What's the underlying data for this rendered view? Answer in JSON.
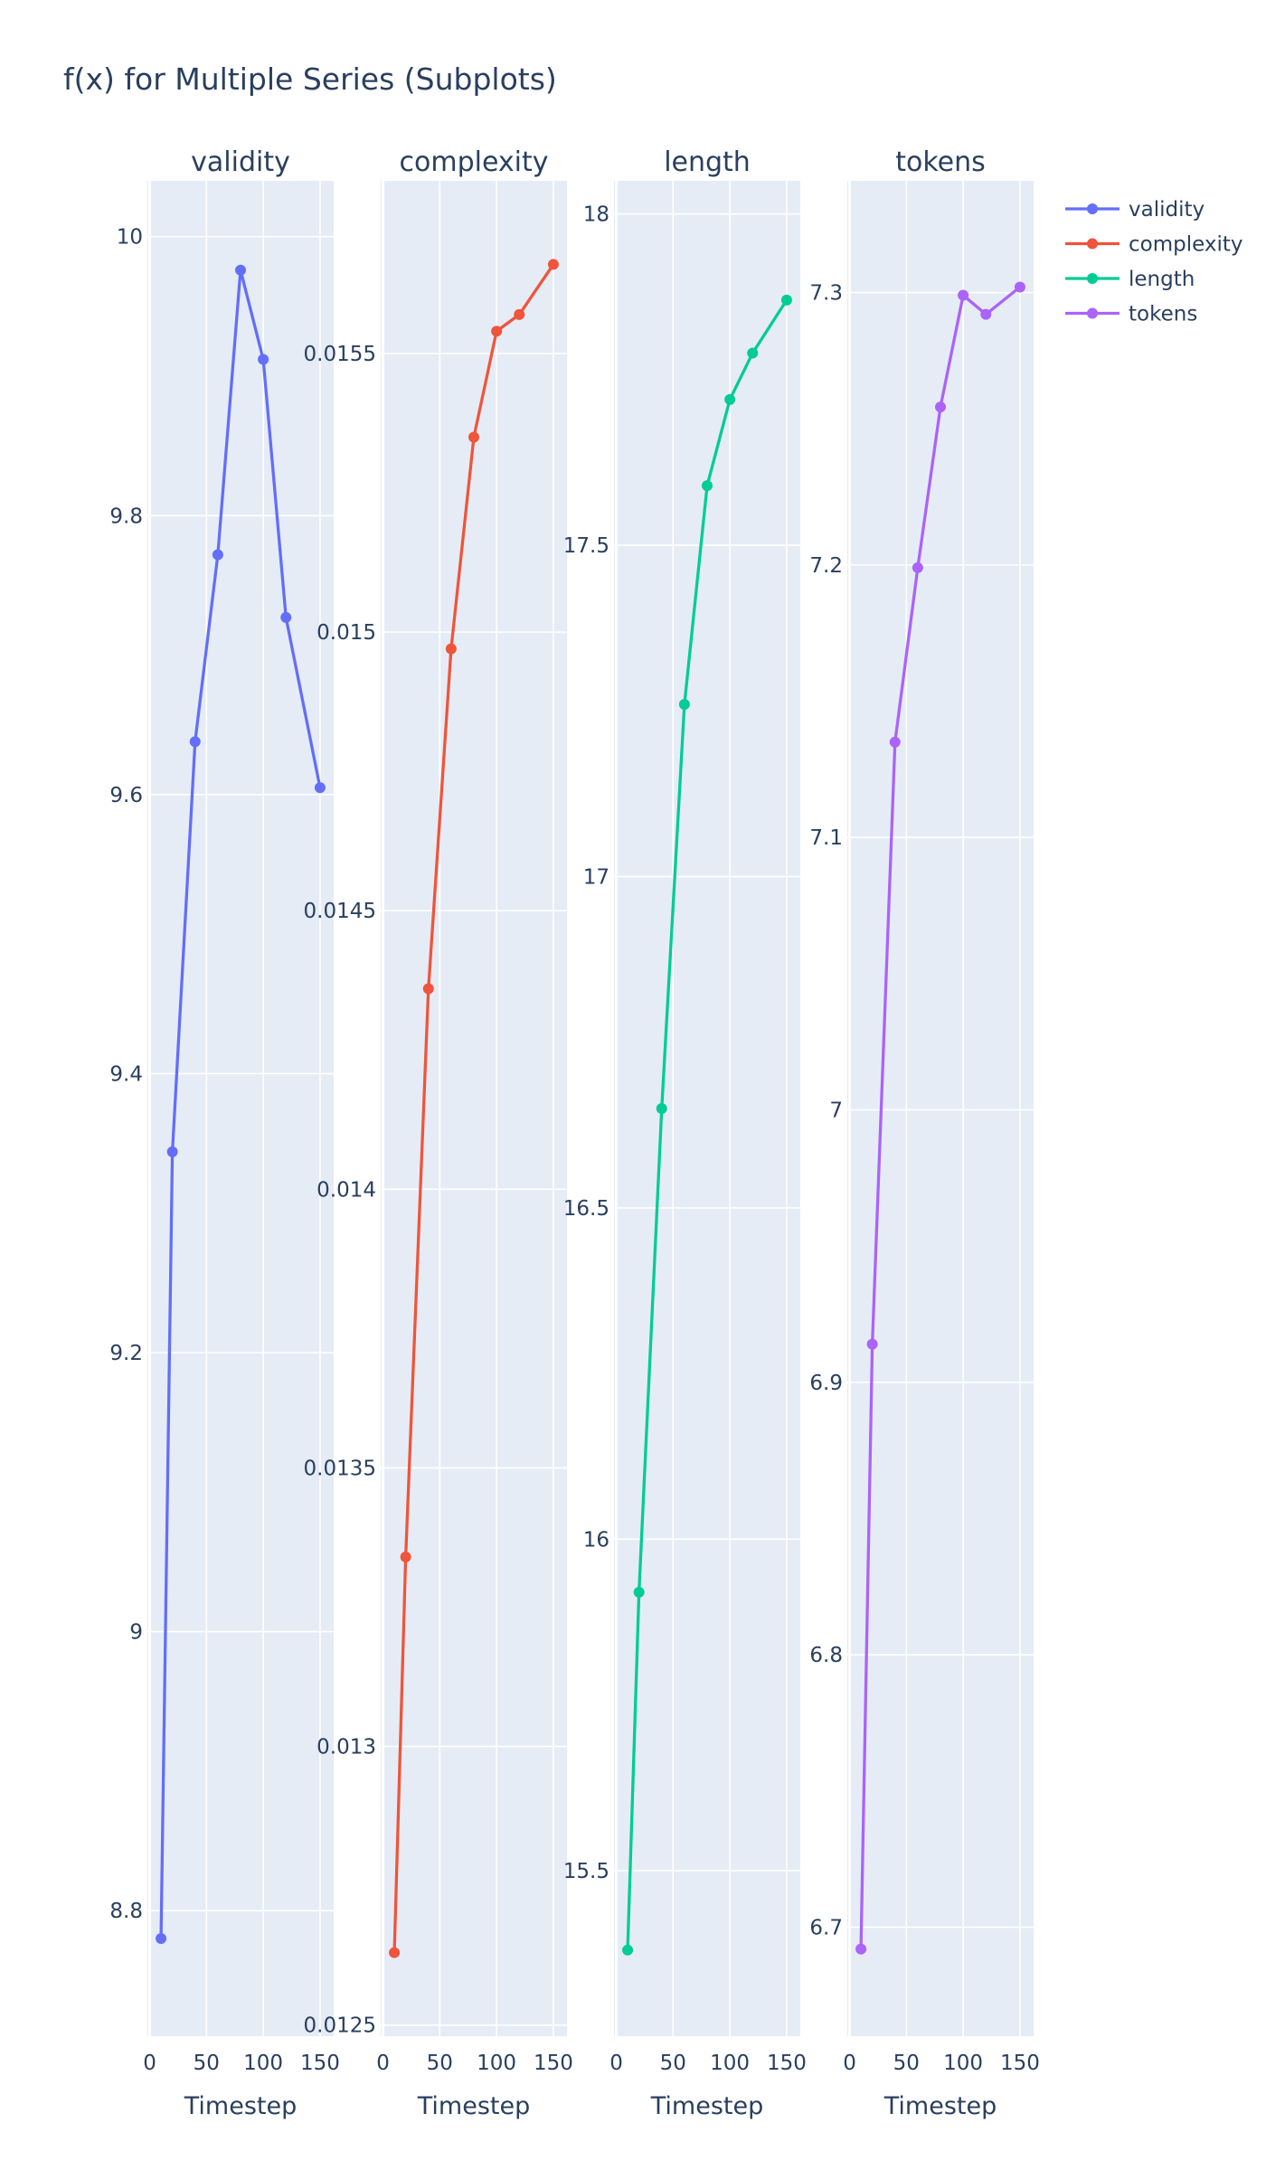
{
  "title": "f(x) for Multiple Series (Subplots)",
  "chart_data": {
    "type": "line",
    "title": "f(x) for Multiple Series (Subplots)",
    "legend_position": "top-right",
    "grid": true,
    "x": [
      10,
      20,
      40,
      60,
      80,
      100,
      120,
      150
    ],
    "xlabel": "Timestep",
    "xlim": [
      -2,
      162
    ],
    "xticks": [
      0,
      50,
      100,
      150
    ],
    "series": [
      {
        "name": "validity",
        "color": "#636efa",
        "values": [
          8.78,
          9.344,
          9.638,
          9.772,
          9.976,
          9.912,
          9.727,
          9.605
        ],
        "ylim": [
          8.71,
          10.04
        ],
        "yticks": [
          8.8,
          9,
          9.2,
          9.4,
          9.6,
          9.8,
          10
        ],
        "ytick_labels": [
          "8.8",
          "9",
          "9.2",
          "9.4",
          "9.6",
          "9.8",
          "10"
        ]
      },
      {
        "name": "complexity",
        "color": "#ef553b",
        "values": [
          0.01263,
          0.01334,
          0.01436,
          0.01497,
          0.01535,
          0.01554,
          0.01557,
          0.01566
        ],
        "ylim": [
          0.01248,
          0.01581
        ],
        "yticks": [
          0.0125,
          0.013,
          0.0135,
          0.014,
          0.0145,
          0.015,
          0.0155
        ],
        "ytick_labels": [
          "0.0125",
          "0.013",
          "0.0135",
          "0.014",
          "0.0145",
          "0.015",
          "0.0155"
        ]
      },
      {
        "name": "length",
        "color": "#00cc96",
        "values": [
          15.38,
          15.92,
          16.65,
          17.26,
          17.59,
          17.72,
          17.79,
          17.87
        ],
        "ylim": [
          15.25,
          18.05
        ],
        "yticks": [
          15.5,
          16,
          16.5,
          17,
          17.5,
          18
        ],
        "ytick_labels": [
          "15.5",
          "16",
          "16.5",
          "17",
          "17.5",
          "18"
        ]
      },
      {
        "name": "tokens",
        "color": "#ab63fa",
        "values": [
          6.692,
          6.914,
          7.135,
          7.199,
          7.258,
          7.299,
          7.292,
          7.302
        ],
        "ylim": [
          6.66,
          7.341
        ],
        "yticks": [
          6.7,
          6.8,
          6.9,
          7,
          7.1,
          7.2,
          7.3
        ],
        "ytick_labels": [
          "6.7",
          "6.8",
          "6.9",
          "7",
          "7.1",
          "7.2",
          "7.3"
        ]
      }
    ]
  }
}
